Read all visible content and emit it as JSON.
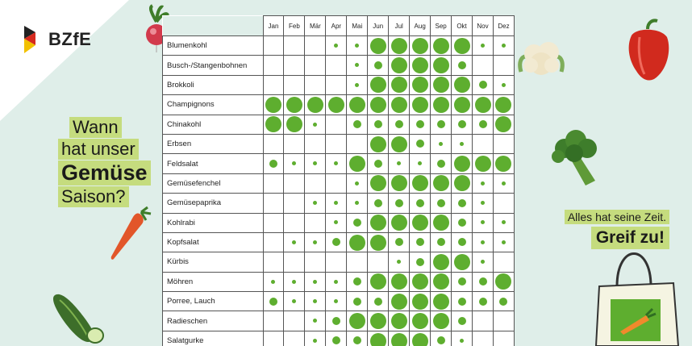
{
  "brand": {
    "logo_text": "BZfE"
  },
  "headline": {
    "line1": "Wann",
    "line2": "hat unser",
    "line3": "Gemüse",
    "line4": "Saison?"
  },
  "slogan": {
    "line1": "Alles hat seine Zeit.",
    "line2": "Greif zu!"
  },
  "colors": {
    "dot": "#5eae2f",
    "highlight": "#c5dc7e",
    "background": "#dfeee9"
  },
  "months": [
    "Jan",
    "Feb",
    "Mär",
    "Apr",
    "Mai",
    "Jun",
    "Jul",
    "Aug",
    "Sep",
    "Okt",
    "Nov",
    "Dez"
  ],
  "legend_note": "",
  "vegetables": [
    {
      "name": "Blumenkohl",
      "season": [
        0,
        0,
        0,
        1,
        1,
        3,
        3,
        3,
        3,
        3,
        1,
        1
      ]
    },
    {
      "name": "Busch-/Stangenbohnen",
      "season": [
        0,
        0,
        0,
        0,
        1,
        2,
        3,
        3,
        3,
        2,
        0,
        0
      ]
    },
    {
      "name": "Brokkoli",
      "season": [
        0,
        0,
        0,
        0,
        1,
        3,
        3,
        3,
        3,
        3,
        2,
        1
      ]
    },
    {
      "name": "Champignons",
      "season": [
        3,
        3,
        3,
        3,
        3,
        3,
        3,
        3,
        3,
        3,
        3,
        3
      ]
    },
    {
      "name": "Chinakohl",
      "season": [
        3,
        3,
        1,
        0,
        2,
        2,
        2,
        2,
        2,
        2,
        2,
        3
      ]
    },
    {
      "name": "Erbsen",
      "season": [
        0,
        0,
        0,
        0,
        0,
        3,
        3,
        2,
        1,
        1,
        0,
        0
      ]
    },
    {
      "name": "Feldsalat",
      "season": [
        2,
        1,
        1,
        1,
        3,
        2,
        1,
        1,
        2,
        3,
        3,
        3
      ]
    },
    {
      "name": "Gemüsefenchel",
      "season": [
        0,
        0,
        0,
        0,
        1,
        3,
        3,
        3,
        3,
        3,
        1,
        1
      ]
    },
    {
      "name": "Gemüsepaprika",
      "season": [
        0,
        0,
        1,
        1,
        1,
        2,
        2,
        2,
        2,
        2,
        1,
        0
      ]
    },
    {
      "name": "Kohlrabi",
      "season": [
        0,
        0,
        0,
        1,
        2,
        3,
        3,
        3,
        3,
        2,
        1,
        1
      ]
    },
    {
      "name": "Kopfsalat",
      "season": [
        0,
        1,
        1,
        2,
        3,
        3,
        2,
        2,
        2,
        2,
        1,
        1
      ]
    },
    {
      "name": "Kürbis",
      "season": [
        0,
        0,
        0,
        0,
        0,
        0,
        1,
        2,
        3,
        3,
        1,
        0
      ]
    },
    {
      "name": "Möhren",
      "season": [
        1,
        1,
        1,
        1,
        2,
        3,
        3,
        3,
        3,
        2,
        2,
        3
      ]
    },
    {
      "name": "Porree, Lauch",
      "season": [
        2,
        1,
        1,
        1,
        2,
        2,
        3,
        3,
        3,
        2,
        2,
        2
      ]
    },
    {
      "name": "Radieschen",
      "season": [
        0,
        0,
        1,
        2,
        3,
        3,
        3,
        3,
        3,
        2,
        0,
        0
      ]
    },
    {
      "name": "Salatgurke",
      "season": [
        0,
        0,
        1,
        2,
        2,
        3,
        3,
        3,
        2,
        1,
        0,
        0
      ]
    }
  ]
}
